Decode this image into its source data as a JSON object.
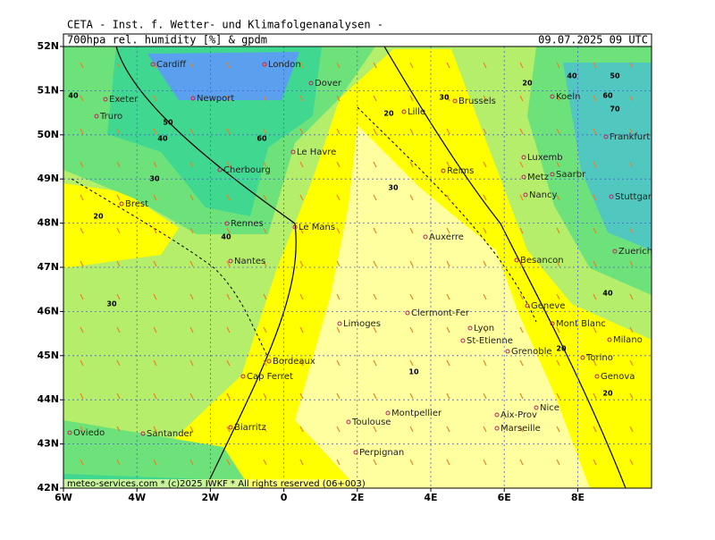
{
  "header": {
    "institute": "CETA - Inst. f. Wetter- und Klimafolgenanalysen -",
    "product": "700hpa rel. humidity [%] & gpdm",
    "valid_time": "09.07.2025 09 UTC"
  },
  "axes": {
    "lat_ticks": [
      {
        "value": 52,
        "label": "52N"
      },
      {
        "value": 51,
        "label": "51N"
      },
      {
        "value": 50,
        "label": "50N"
      },
      {
        "value": 49,
        "label": "49N"
      },
      {
        "value": 48,
        "label": "48N"
      },
      {
        "value": 47,
        "label": "47N"
      },
      {
        "value": 46,
        "label": "46N"
      },
      {
        "value": 45,
        "label": "45N"
      },
      {
        "value": 44,
        "label": "44N"
      },
      {
        "value": 43,
        "label": "43N"
      },
      {
        "value": 42,
        "label": "42N"
      }
    ],
    "lon_ticks": [
      {
        "value": -6,
        "label": "6W"
      },
      {
        "value": -4,
        "label": "4W"
      },
      {
        "value": -2,
        "label": "2W"
      },
      {
        "value": 0,
        "label": "0"
      },
      {
        "value": 2,
        "label": "2E"
      },
      {
        "value": 4,
        "label": "4E"
      },
      {
        "value": 6,
        "label": "6E"
      },
      {
        "value": 8,
        "label": "8E"
      }
    ]
  },
  "cities": [
    "Cardiff",
    "London",
    "Dover",
    "Exeter",
    "Newport",
    "Truro",
    "Lille",
    "Brussels",
    "Koeln",
    "Frankfurt",
    "Cherbourg",
    "Le Havre",
    "Reims",
    "Luxemb",
    "Metz",
    "Saarbr",
    "Nancy",
    "Stuttgart",
    "Brest",
    "Rennes",
    "Le Mans",
    "Auxerre",
    "Nantes",
    "Besancon",
    "Zuerich",
    "Geneve",
    "Mont Blanc",
    "Limoges",
    "Clermont-Fer",
    "Lyon",
    "St-Etienne",
    "Grenoble",
    "Milano",
    "Torino",
    "Bordeaux",
    "Cap Ferret",
    "Genova",
    "Nice",
    "Montpellier",
    "Aix-Prov",
    "Toulouse",
    "Marseille",
    "Biarritz",
    "Oviedo",
    "Santander",
    "Perpignan"
  ],
  "contour_labels": [
    40,
    50,
    60,
    40,
    30,
    20,
    40,
    30,
    20,
    30,
    20,
    40,
    60,
    70,
    50,
    30,
    10,
    20,
    40,
    20
  ],
  "footer": "meteo-services.com * (c)2025 IWKF * All rights reserved (06+003)"
}
